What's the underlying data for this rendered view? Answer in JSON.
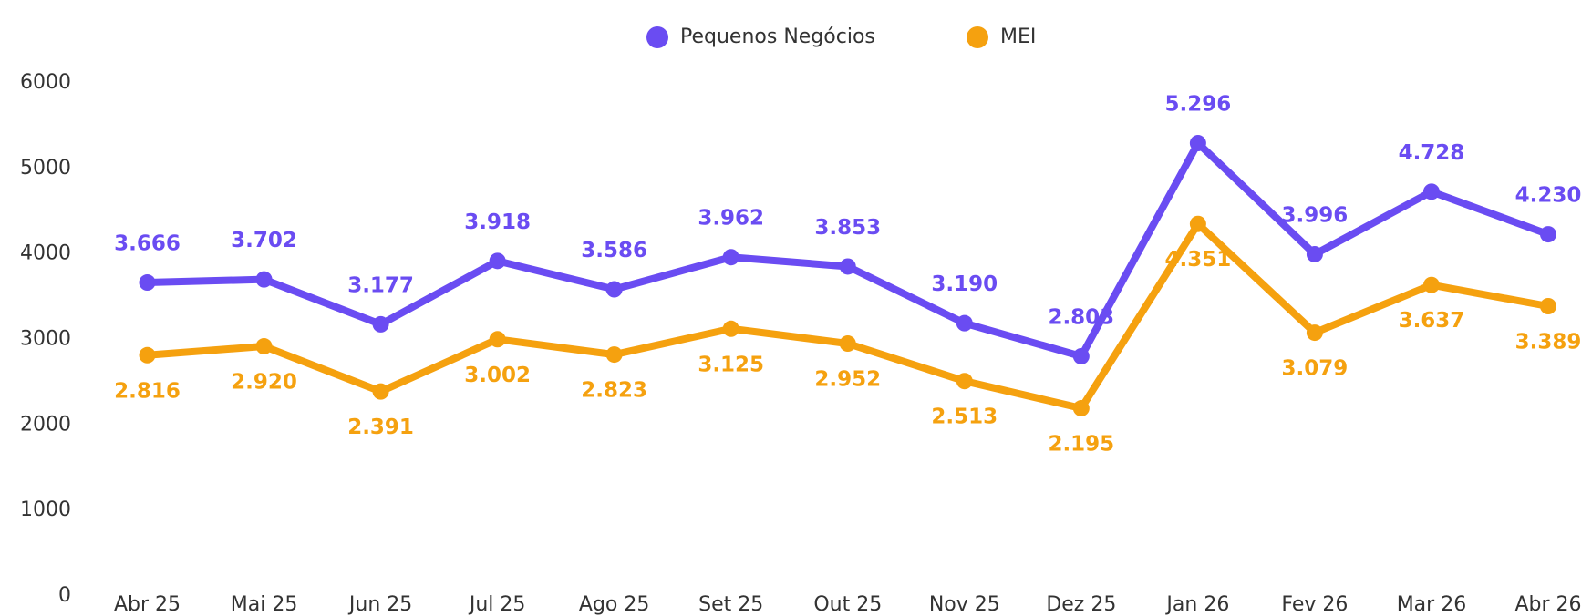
{
  "chart_data": {
    "type": "line",
    "categories": [
      "Abr 25",
      "Mai 25",
      "Jun 25",
      "Jul 25",
      "Ago 25",
      "Set 25",
      "Out 25",
      "Nov 25",
      "Dez 25",
      "Jan 26",
      "Fev 26",
      "Mar 26",
      "Abr 26"
    ],
    "series": [
      {
        "name": "Pequenos Negócios",
        "color": "#6a4cf2",
        "values": [
          3666,
          3702,
          3177,
          3918,
          3586,
          3962,
          3853,
          3190,
          2803,
          5296,
          3996,
          4728,
          4230
        ],
        "value_labels": [
          "3.666",
          "3.702",
          "3.177",
          "3.918",
          "3.586",
          "3.962",
          "3.853",
          "3.190",
          "2.803",
          "5.296",
          "3.996",
          "4.728",
          "4.230"
        ]
      },
      {
        "name": "MEI",
        "color": "#f5a10f",
        "values": [
          2816,
          2920,
          2391,
          3002,
          2823,
          3125,
          2952,
          2513,
          2195,
          4351,
          3079,
          3637,
          3389
        ],
        "value_labels": [
          "2.816",
          "2.920",
          "2.391",
          "3.002",
          "2.823",
          "3.125",
          "2.952",
          "2.513",
          "2.195",
          "4.351",
          "3.079",
          "3.637",
          "3.389"
        ]
      }
    ],
    "ylim": [
      0,
      6000
    ],
    "yticks": [
      0,
      1000,
      2000,
      3000,
      4000,
      5000,
      6000
    ],
    "grid": false,
    "legend": "top"
  }
}
